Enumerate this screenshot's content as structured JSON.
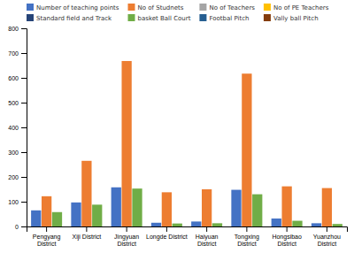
{
  "chart_data": {
    "type": "bar",
    "categories": [
      "Pengyang\nDistrict",
      "Xiji District",
      "Jingyuan\nDistrict",
      "Longde District",
      "Haiyuan\nDistrict",
      "Tongxing\nDistrict",
      "Hongsibao\nDistrict",
      "Yuanzhou\nDistrict"
    ],
    "series": [
      {
        "name": "Number of teaching points",
        "color": "#4472C4",
        "values": [
          65,
          97,
          158,
          15,
          20,
          148,
          32,
          13
        ]
      },
      {
        "name": "No of Studnets",
        "color": "#ED7D31",
        "values": [
          122,
          265,
          668,
          138,
          150,
          617,
          162,
          155
        ]
      },
      {
        "name": "No of Teachers",
        "color": "#A5A5A5"
      },
      {
        "name": "No of PE Teachers",
        "color": "#FFC000"
      },
      {
        "name": "Standard field and Track",
        "color": "#264478"
      },
      {
        "name": "basket Ball Court",
        "color": "#70AD47",
        "values": [
          58,
          88,
          153,
          12,
          13,
          130,
          23,
          10
        ]
      },
      {
        "name": "Footbal Pitch",
        "color": "#255E91"
      },
      {
        "name": "Vally ball Pitch",
        "color": "#843C0C"
      }
    ],
    "ylim": [
      0,
      800
    ],
    "yticks": [
      0,
      100,
      200,
      300,
      400,
      500,
      600,
      700,
      800
    ],
    "grid": false
  }
}
